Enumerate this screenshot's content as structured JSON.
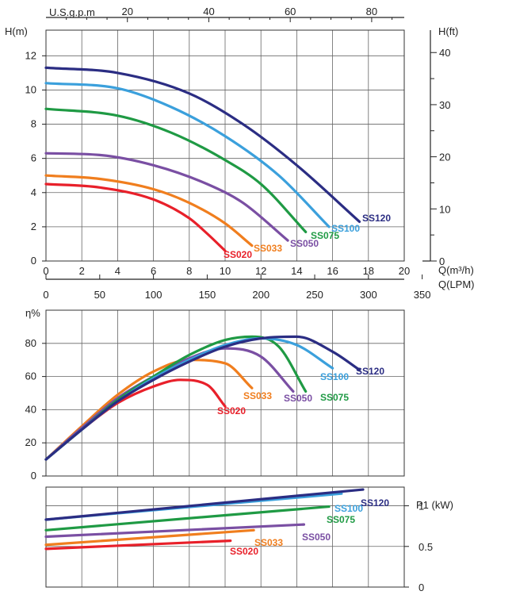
{
  "chart_data": [
    {
      "type": "line",
      "title": "",
      "top_axis": {
        "label": "U.S.g.p.m",
        "ticks": [
          20,
          40,
          60,
          80
        ],
        "range": [
          0,
          88
        ]
      },
      "left_axis": {
        "label": "H(m)",
        "ticks": [
          0,
          2,
          4,
          6,
          8,
          10,
          12
        ],
        "range": [
          0,
          13.5
        ]
      },
      "right_axis": {
        "label": "H(ft)",
        "ticks": [
          0,
          10,
          20,
          30,
          40
        ],
        "range": [
          0,
          44.3
        ]
      },
      "x_axis_m3h": {
        "label": "Q(m³/h)",
        "ticks": [
          0,
          2,
          4,
          6,
          8,
          10,
          12,
          14,
          16,
          18,
          20
        ],
        "range": [
          0,
          20
        ]
      },
      "x_axis_lpm": {
        "label": "Q(LPM)",
        "ticks": [
          0,
          50,
          100,
          150,
          200,
          250,
          300,
          350
        ],
        "range": [
          0,
          333.3
        ]
      },
      "grid": true,
      "series": [
        {
          "name": "SS020",
          "color": "#e8202a",
          "x": [
            0,
            3,
            6,
            8,
            9,
            10
          ],
          "y": [
            4.5,
            4.3,
            3.6,
            2.5,
            1.6,
            0.6
          ]
        },
        {
          "name": "SS033",
          "color": "#f07e1e",
          "x": [
            0,
            3,
            6,
            8,
            10,
            11.5
          ],
          "y": [
            5.0,
            4.8,
            4.2,
            3.4,
            2.2,
            0.9
          ]
        },
        {
          "name": "SS050",
          "color": "#7a4fa3",
          "x": [
            0,
            3,
            6,
            9,
            11,
            13.5
          ],
          "y": [
            6.3,
            6.2,
            5.6,
            4.5,
            3.4,
            1.2
          ]
        },
        {
          "name": "SS075",
          "color": "#1f9a44",
          "x": [
            0,
            4,
            7,
            10,
            12,
            14.5
          ],
          "y": [
            8.9,
            8.5,
            7.5,
            5.9,
            4.5,
            1.7
          ]
        },
        {
          "name": "SS100",
          "color": "#3ba0dc",
          "x": [
            0,
            4,
            7,
            10,
            13,
            15.8
          ],
          "y": [
            10.4,
            10.1,
            9.0,
            7.3,
            5.0,
            2.0
          ]
        },
        {
          "name": "SS120",
          "color": "#2b2d83",
          "x": [
            0,
            4,
            8,
            11,
            14,
            17.5
          ],
          "y": [
            11.3,
            11.0,
            9.8,
            8.0,
            5.6,
            2.3
          ]
        }
      ]
    },
    {
      "type": "line",
      "title": "",
      "ylabel": "η%",
      "y_ticks": [
        0,
        20,
        40,
        60,
        80
      ],
      "ylim": [
        0,
        100
      ],
      "xlim": [
        0,
        20
      ],
      "grid": true,
      "series": [
        {
          "name": "SS020",
          "color": "#e8202a",
          "x": [
            0,
            2,
            4,
            6,
            7.5,
            9,
            10
          ],
          "y": [
            10,
            28,
            44,
            54,
            58,
            55,
            42
          ]
        },
        {
          "name": "SS033",
          "color": "#f07e1e",
          "x": [
            0,
            2,
            4,
            6,
            8,
            10,
            11.5
          ],
          "y": [
            10,
            30,
            49,
            63,
            70,
            68,
            53
          ]
        },
        {
          "name": "SS050",
          "color": "#7a4fa3",
          "x": [
            0,
            2,
            4,
            6,
            8,
            10,
            12,
            13.8
          ],
          "y": [
            10,
            29,
            47,
            60,
            71,
            77,
            72,
            51
          ]
        },
        {
          "name": "SS075",
          "color": "#1f9a44",
          "x": [
            0,
            2,
            4,
            6,
            8,
            10,
            11.5,
            13,
            14.5
          ],
          "y": [
            10,
            28,
            46,
            60,
            73,
            82,
            84,
            78,
            51
          ]
        },
        {
          "name": "SS100",
          "color": "#3ba0dc",
          "x": [
            0,
            2,
            4,
            6,
            8,
            10,
            12,
            14,
            16
          ],
          "y": [
            10,
            28,
            45,
            59,
            70,
            79,
            83,
            79,
            65
          ]
        },
        {
          "name": "SS120",
          "color": "#2b2d83",
          "x": [
            0,
            2,
            4,
            6,
            8,
            10,
            12,
            14,
            16,
            17.5
          ],
          "y": [
            10,
            28,
            45,
            58,
            69,
            78,
            83,
            84,
            75,
            64
          ]
        }
      ]
    },
    {
      "type": "line",
      "title": "",
      "ylabel": "P1 (kW)",
      "y_ticks": [
        0,
        0.5,
        1
      ],
      "ylim": [
        0,
        1.23
      ],
      "xlim": [
        0,
        20
      ],
      "grid": true,
      "series": [
        {
          "name": "SS020",
          "color": "#e8202a",
          "x": [
            0,
            10.3
          ],
          "y": [
            0.47,
            0.57
          ]
        },
        {
          "name": "SS033",
          "color": "#f07e1e",
          "x": [
            0,
            11.6
          ],
          "y": [
            0.52,
            0.7
          ]
        },
        {
          "name": "SS050",
          "color": "#7a4fa3",
          "x": [
            0,
            14.4
          ],
          "y": [
            0.62,
            0.77
          ]
        },
        {
          "name": "SS075",
          "color": "#1f9a44",
          "x": [
            0,
            15.8
          ],
          "y": [
            0.7,
            0.99
          ]
        },
        {
          "name": "SS100",
          "color": "#3ba0dc",
          "x": [
            0,
            16.5
          ],
          "y": [
            0.83,
            1.15
          ]
        },
        {
          "name": "SS120",
          "color": "#2b2d83",
          "x": [
            0,
            17.7
          ],
          "y": [
            0.83,
            1.2
          ]
        }
      ]
    }
  ]
}
